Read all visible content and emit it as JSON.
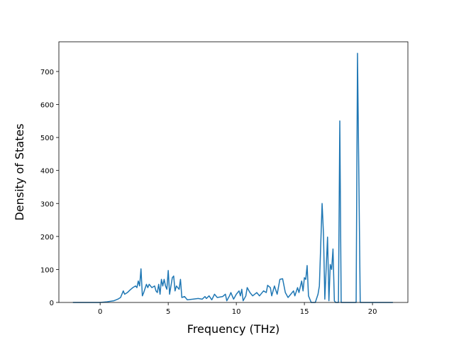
{
  "chart_data": {
    "type": "line",
    "xlabel": "Frequency (THz)",
    "ylabel": "Density of States",
    "x": [
      -2,
      0,
      0.5,
      1,
      1.3,
      1.5,
      1.7,
      1.8,
      2,
      2.2,
      2.4,
      2.6,
      2.7,
      2.8,
      2.9,
      3.0,
      3.1,
      3.2,
      3.4,
      3.5,
      3.6,
      3.8,
      4.0,
      4.1,
      4.2,
      4.3,
      4.4,
      4.5,
      4.6,
      4.7,
      4.8,
      4.9,
      5.0,
      5.1,
      5.3,
      5.4,
      5.5,
      5.6,
      5.8,
      5.9,
      6.0,
      6.2,
      6.4,
      6.8,
      7.2,
      7.5,
      7.7,
      7.8,
      8.0,
      8.2,
      8.4,
      8.6,
      9.0,
      9.2,
      9.3,
      9.5,
      9.6,
      9.8,
      10.0,
      10.2,
      10.3,
      10.4,
      10.5,
      10.7,
      10.8,
      11.0,
      11.2,
      11.5,
      11.7,
      12.0,
      12.2,
      12.3,
      12.5,
      12.6,
      12.8,
      13.0,
      13.2,
      13.4,
      13.6,
      13.8,
      14.0,
      14.2,
      14.3,
      14.5,
      14.6,
      14.8,
      14.9,
      15.0,
      15.1,
      15.2,
      15.3,
      15.5,
      15.8,
      16.0,
      16.1,
      16.3,
      16.4,
      16.5,
      16.7,
      16.8,
      16.9,
      17.0,
      17.1,
      17.2,
      17.3,
      17.5,
      17.6,
      17.7,
      18.0,
      18.8,
      18.9,
      19.1,
      21.5
    ],
    "series": [
      {
        "name": "DOS",
        "color": "#1f77b4",
        "values": [
          0,
          0,
          2,
          5,
          10,
          15,
          35,
          25,
          30,
          38,
          45,
          50,
          45,
          65,
          50,
          102,
          20,
          30,
          55,
          45,
          55,
          45,
          50,
          35,
          30,
          55,
          25,
          70,
          50,
          70,
          50,
          40,
          97,
          25,
          75,
          80,
          35,
          50,
          40,
          70,
          15,
          18,
          8,
          10,
          12,
          10,
          18,
          12,
          20,
          8,
          25,
          15,
          18,
          25,
          5,
          20,
          30,
          10,
          25,
          35,
          20,
          40,
          5,
          20,
          45,
          30,
          20,
          30,
          20,
          35,
          30,
          52,
          45,
          20,
          50,
          25,
          70,
          72,
          30,
          15,
          25,
          35,
          20,
          45,
          30,
          65,
          35,
          75,
          70,
          112,
          20,
          0,
          0,
          25,
          50,
          300,
          210,
          10,
          198,
          5,
          115,
          100,
          162,
          5,
          0,
          0,
          550,
          0,
          0,
          0,
          755,
          0,
          0
        ]
      }
    ],
    "xlim": [
      -3.03,
      22.6
    ],
    "ylim": [
      0,
      790
    ],
    "xticks": [
      0,
      5,
      10,
      15,
      20
    ],
    "yticks": [
      0,
      100,
      200,
      300,
      400,
      500,
      600,
      700
    ],
    "grid": false
  }
}
